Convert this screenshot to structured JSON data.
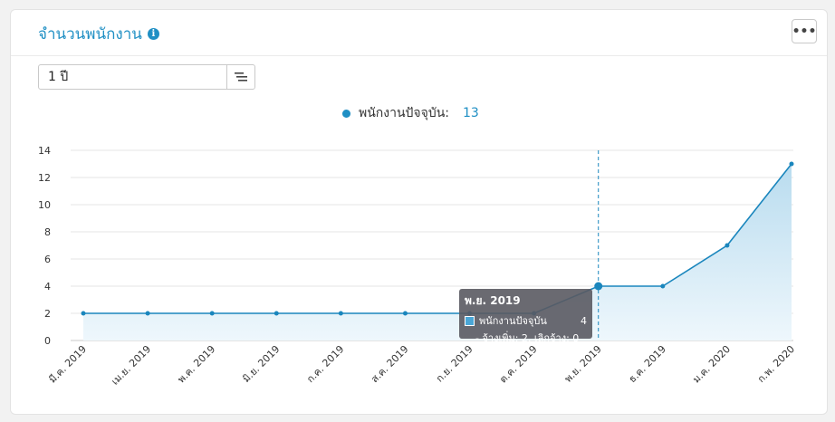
{
  "header": {
    "title": "จำนวนพนักงาน",
    "more_label": "•••"
  },
  "filter": {
    "period_value": "1 ปี"
  },
  "legend": {
    "series_name": "พนักงานปัจจุบัน:",
    "series_value": "13"
  },
  "tooltip": {
    "title": "พ.ย. 2019",
    "series_name": "พนักงานปัจจุบัน",
    "series_value": "4",
    "detail": "- จ้างเพิ่ม: 2, เลิกจ้าง: 0"
  },
  "colors": {
    "accent": "#1f8fc4",
    "line": "#1a86bd",
    "area_top": "#b9dcef",
    "area_bottom": "#eef7fc"
  },
  "chart_data": {
    "type": "area",
    "categories": [
      "มี.ค. 2019",
      "เม.ย. 2019",
      "พ.ค. 2019",
      "มิ.ย. 2019",
      "ก.ค. 2019",
      "ส.ค. 2019",
      "ก.ย. 2019",
      "ต.ค. 2019",
      "พ.ย. 2019",
      "ธ.ค. 2019",
      "ม.ค. 2020",
      "ก.พ. 2020"
    ],
    "series": [
      {
        "name": "พนักงานปัจจุบัน",
        "values": [
          2,
          2,
          2,
          2,
          2,
          2,
          2,
          2,
          4,
          4,
          7,
          13
        ]
      }
    ],
    "y_ticks": [
      0,
      2,
      4,
      6,
      8,
      10,
      12,
      14
    ],
    "ylim": [
      0,
      14
    ],
    "highlighted_category": "พ.ย. 2019",
    "grid": true,
    "legend_position": "top-center"
  }
}
